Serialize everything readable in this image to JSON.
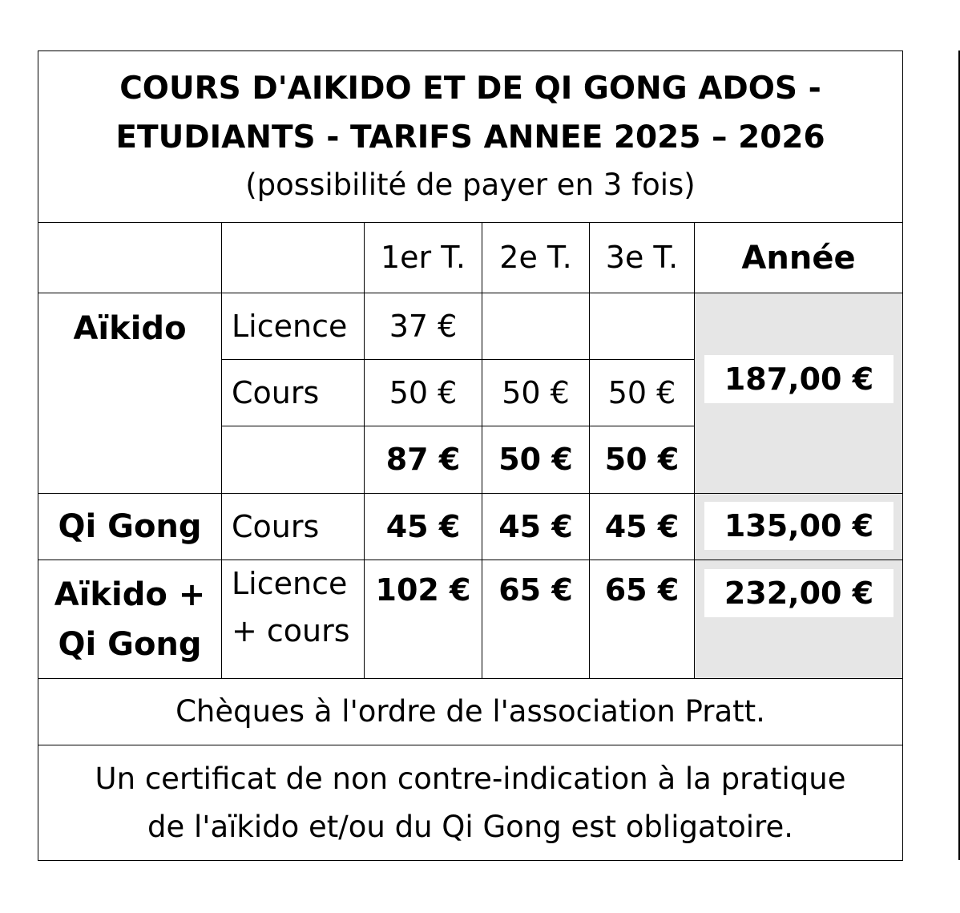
{
  "title": {
    "line1": "COURS D'AIKIDO ET DE QI GONG ADOS -",
    "line2": "ETUDIANTS - TARIFS ANNEE  2025 – 2026",
    "subtitle": "(possibilité de payer en 3 fois)"
  },
  "header": [
    "",
    "",
    "1er T.",
    "2e T.",
    "3e T.",
    "Année"
  ],
  "aikido": {
    "label": "Aïkido",
    "licence": {
      "label": "Licence",
      "t1": "37 €",
      "t2": "",
      "t3": ""
    },
    "cours": {
      "label": "Cours",
      "t1": "50 €",
      "t2": "50 €",
      "t3": "50 €"
    },
    "subtotal": {
      "t1": "87 €",
      "t2": "50 €",
      "t3": "50 €"
    },
    "annee": "187,00 €"
  },
  "qigong": {
    "label": "Qi Gong",
    "type": "Cours",
    "t1": "45 €",
    "t2": "45 €",
    "t3": "45 €",
    "annee": "135,00 €"
  },
  "combo": {
    "label1": "Aïkido +",
    "label2": "Qi Gong",
    "type1": "Licence",
    "type2": "+ cours",
    "t1": "102 €",
    "t2": "65 €",
    "t3": "65 €",
    "annee": "232,00 €"
  },
  "footer": {
    "cheques": "Chèques à l'ordre de l'association Pratt.",
    "certificat1": "Un certificat de non contre-indication à la pratique",
    "certificat2": "de l'aïkido et/ou du Qi Gong est obligatoire."
  },
  "colors": {
    "annee_bg": "#e6e6e6"
  }
}
